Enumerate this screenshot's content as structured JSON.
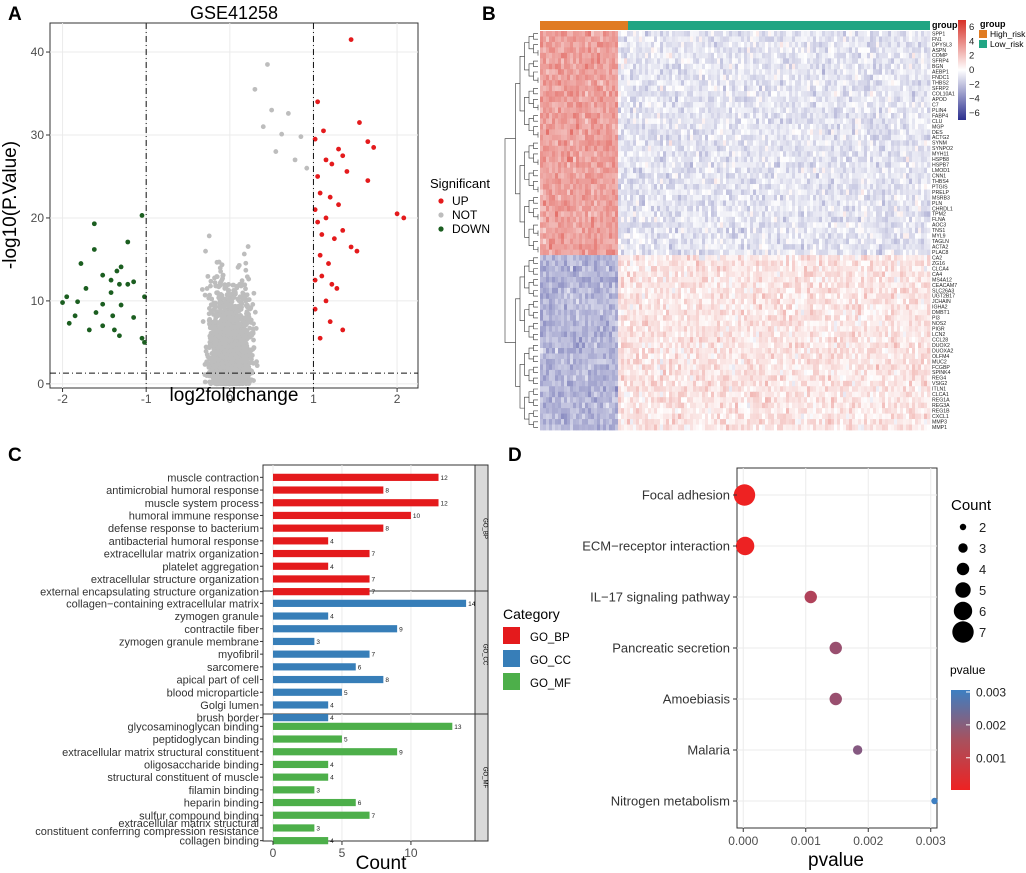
{
  "chart_data": [
    {
      "panel": "A",
      "type": "scatter",
      "title": "GSE41258",
      "xlabel": "log2foldchange",
      "ylabel": "-log10(P.Value)",
      "xlim": [
        -2.15,
        2.25
      ],
      "ylim": [
        -0.5,
        43.5
      ],
      "xticks": [
        -2,
        -1,
        0,
        1,
        2
      ],
      "yticks": [
        0,
        10,
        20,
        30,
        40
      ],
      "thresholds": {
        "x": [
          -1,
          1
        ],
        "y": 1.3
      },
      "legend": {
        "title": "Significant",
        "position": "right",
        "entries": [
          {
            "label": "UP",
            "color": "#e41a1c"
          },
          {
            "label": "NOT",
            "color": "#bdbdbd"
          },
          {
            "label": "DOWN",
            "color": "#1b5e20"
          }
        ]
      },
      "series": [
        {
          "name": "UP",
          "color": "#e41a1c",
          "points": [
            [
              1.45,
              41.5
            ],
            [
              1.05,
              34.0
            ],
            [
              1.55,
              31.5
            ],
            [
              1.12,
              30.5
            ],
            [
              1.02,
              29.5
            ],
            [
              1.65,
              29.2
            ],
            [
              1.72,
              28.5
            ],
            [
              1.3,
              28.3
            ],
            [
              1.15,
              27.0
            ],
            [
              1.22,
              26.5
            ],
            [
              1.35,
              27.5
            ],
            [
              1.05,
              25.0
            ],
            [
              1.4,
              25.6
            ],
            [
              1.08,
              23.0
            ],
            [
              1.2,
              22.5
            ],
            [
              1.65,
              24.5
            ],
            [
              1.3,
              21.6
            ],
            [
              1.02,
              21.0
            ],
            [
              1.15,
              20.0
            ],
            [
              2.0,
              20.5
            ],
            [
              2.08,
              20.0
            ],
            [
              1.05,
              19.5
            ],
            [
              1.35,
              18.5
            ],
            [
              1.1,
              18.0
            ],
            [
              1.25,
              17.5
            ],
            [
              1.45,
              16.5
            ],
            [
              1.52,
              16.0
            ],
            [
              1.08,
              15.5
            ],
            [
              1.18,
              14.5
            ],
            [
              1.1,
              13.0
            ],
            [
              1.02,
              12.5
            ],
            [
              1.22,
              12.0
            ],
            [
              1.28,
              11.5
            ],
            [
              1.15,
              10.0
            ],
            [
              1.02,
              9.0
            ],
            [
              1.2,
              7.5
            ],
            [
              1.35,
              6.5
            ],
            [
              1.08,
              5.5
            ]
          ]
        },
        {
          "name": "DOWN",
          "color": "#1b5e20",
          "points": [
            [
              -1.62,
              19.3
            ],
            [
              -1.05,
              20.3
            ],
            [
              -1.22,
              17.1
            ],
            [
              -1.62,
              16.2
            ],
            [
              -1.78,
              14.5
            ],
            [
              -1.3,
              14.1
            ],
            [
              -1.35,
              13.6
            ],
            [
              -1.52,
              13.1
            ],
            [
              -1.42,
              12.5
            ],
            [
              -1.15,
              12.3
            ],
            [
              -1.22,
              12.0
            ],
            [
              -1.32,
              12.0
            ],
            [
              -1.72,
              11.5
            ],
            [
              -1.42,
              11.0
            ],
            [
              -1.02,
              10.5
            ],
            [
              -1.95,
              10.5
            ],
            [
              -2.0,
              9.8
            ],
            [
              -1.82,
              9.9
            ],
            [
              -1.52,
              9.6
            ],
            [
              -1.3,
              9.5
            ],
            [
              -1.6,
              8.6
            ],
            [
              -1.85,
              8.2
            ],
            [
              -1.4,
              8.2
            ],
            [
              -1.15,
              8.0
            ],
            [
              -1.92,
              7.3
            ],
            [
              -1.52,
              7.0
            ],
            [
              -1.68,
              6.5
            ],
            [
              -1.38,
              6.5
            ],
            [
              -1.32,
              5.8
            ],
            [
              -1.05,
              5.5
            ],
            [
              -1.02,
              5.0
            ]
          ]
        },
        {
          "name": "NOT",
          "color": "#bdbdbd",
          "points": []
        }
      ]
    },
    {
      "panel": "B",
      "type": "heatmap",
      "legend": {
        "title": "group",
        "position": "right",
        "entries": [
          {
            "label": "High_risk",
            "color": "#e07b22"
          },
          {
            "label": "Low_risk",
            "color": "#21a583"
          }
        ]
      },
      "colorbar": {
        "title": "group",
        "min": -7,
        "max": 7,
        "ticks": [
          6,
          4,
          2,
          0,
          -2,
          -4,
          -6
        ],
        "low": "#2b2f8f",
        "mid": "#ffffff",
        "high": "#d73027"
      },
      "genes": [
        "SPP1",
        "FN1",
        "DPYSL3",
        "ASPN",
        "COMP",
        "SFRP4",
        "BGN",
        "AEBP1",
        "FNDC1",
        "THBS2",
        "SFRP2",
        "COL10A1",
        "APOD",
        "C7",
        "PLIN4",
        "FABP4",
        "CLU",
        "MGP",
        "DES",
        "ACTG2",
        "SYNM",
        "SYNPO2",
        "MYH11",
        "HSPB8",
        "HSPB7",
        "LMOD1",
        "CNN1",
        "THBS4",
        "PTGIS",
        "PRELP",
        "MSRB3",
        "PLN",
        "CHRDL1",
        "TPM2",
        "FLNA",
        "AOC3",
        "TNS1",
        "MYL9",
        "TAGLN",
        "ACTA2",
        "PLAC8",
        "CA2",
        "ZG16",
        "CLCA4",
        "CA4",
        "MS4A12",
        "CEACAM7",
        "SLC26A3",
        "UGT2B17",
        "JCHAIN",
        "IGHA2",
        "DMBT1",
        "PI3",
        "NOS2",
        "PIGR",
        "LCN2",
        "CCL28",
        "DUOX2",
        "DUOXA2",
        "OLFM4",
        "MUC2",
        "FCGBP",
        "SPINK4",
        "REG4",
        "VSIG2",
        "ITLN1",
        "CLCA1",
        "REG1A",
        "REG3A",
        "REG1B",
        "CXCL1",
        "MMP3",
        "MMP1"
      ],
      "high_risk_fraction": 0.2
    },
    {
      "panel": "C",
      "type": "bar",
      "orientation": "horizontal",
      "xlabel": "Count",
      "xlim": [
        0,
        14.5
      ],
      "xticks": [
        0,
        5,
        10
      ],
      "legend": {
        "title": "Category",
        "position": "right",
        "entries": [
          {
            "label": "GO_BP",
            "color": "#e41a1c"
          },
          {
            "label": "GO_CC",
            "color": "#377eb8"
          },
          {
            "label": "GO_MF",
            "color": "#4daf4a"
          }
        ]
      },
      "facets": [
        {
          "name": "GO_BP",
          "color": "#e41a1c",
          "categories": [
            "muscle contraction",
            "antimicrobial humoral response",
            "muscle system process",
            "humoral immune response",
            "defense response to bacterium",
            "antibacterial humoral response",
            "extracellular matrix organization",
            "platelet aggregation",
            "extracellular structure organization",
            "external encapsulating structure organization"
          ],
          "values": [
            12,
            8,
            12,
            10,
            8,
            4,
            7,
            4,
            7,
            7
          ]
        },
        {
          "name": "GO_CC",
          "color": "#377eb8",
          "categories": [
            "collagen−containing extracellular matrix",
            "zymogen granule",
            "contractile fiber",
            "zymogen granule membrane",
            "myofibril",
            "sarcomere",
            "apical part of cell",
            "blood microparticle",
            "Golgi lumen",
            "brush border"
          ],
          "values": [
            14,
            4,
            9,
            3,
            7,
            6,
            8,
            5,
            4,
            4
          ]
        },
        {
          "name": "GO_MF",
          "color": "#4daf4a",
          "categories": [
            "glycosaminoglycan binding",
            "peptidoglycan binding",
            "extracellular matrix structural constituent",
            "oligosaccharide binding",
            "structural constituent of muscle",
            "filamin binding",
            "heparin binding",
            "sulfur compound binding",
            "extracellular matrix structural constituent conferring compression resistance",
            "collagen binding"
          ],
          "values": [
            13,
            5,
            9,
            4,
            4,
            3,
            6,
            7,
            3,
            4
          ]
        }
      ]
    },
    {
      "panel": "D",
      "type": "scatter",
      "subtype": "dot-plot",
      "xlabel": "pvalue",
      "xlim": [
        -0.0001,
        0.0031
      ],
      "xticks": [
        0.0,
        0.001,
        0.002,
        0.003
      ],
      "xtick_labels": [
        "0.000",
        "0.001",
        "0.002",
        "0.003"
      ],
      "categories": [
        "Focal adhesion",
        "ECM−receptor interaction",
        "IL−17 signaling pathway",
        "Pancreatic secretion",
        "Amoebiasis",
        "Malaria",
        "Nitrogen metabolism"
      ],
      "pvalues": [
        2e-05,
        3e-05,
        0.00108,
        0.00148,
        0.00148,
        0.00183,
        0.00306
      ],
      "counts": [
        7,
        6,
        4,
        4,
        4,
        3,
        2
      ],
      "size_legend": {
        "title": "Count",
        "position": "right",
        "values": [
          2,
          3,
          4,
          5,
          6,
          7
        ]
      },
      "color_legend": {
        "title": "pvalue",
        "position": "right",
        "ticks": [
          0.003,
          0.002,
          0.001
        ],
        "tick_labels": [
          "0.003",
          "0.002",
          "0.001"
        ],
        "low": "#ee2222",
        "high": "#3d7fc2",
        "min": 2e-05,
        "max": 0.00306
      }
    }
  ]
}
